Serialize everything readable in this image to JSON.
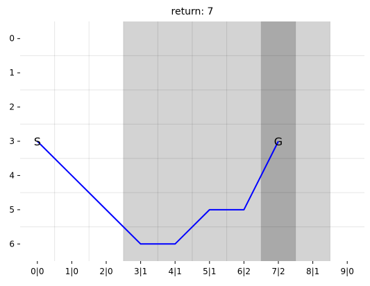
{
  "chart_data": {
    "type": "line",
    "title": "return: 7",
    "x_tick_labels": [
      "0|0",
      "1|0",
      "2|0",
      "3|1",
      "4|1",
      "5|1",
      "6|2",
      "7|2",
      "8|1",
      "9|0"
    ],
    "y_tick_labels": [
      "0",
      "1",
      "2",
      "3",
      "4",
      "5",
      "6"
    ],
    "xlim": [
      -0.5,
      9.5
    ],
    "ylim": [
      6.5,
      -0.5
    ],
    "y_inverted": true,
    "grid": true,
    "shaded_bands": [
      {
        "from": 2.5,
        "to": 6.5,
        "level": 1,
        "color": "#d3d3d3"
      },
      {
        "from": 6.5,
        "to": 8.5,
        "level": 2,
        "color": "#a9a9a9"
      },
      {
        "from": 7.5,
        "to": 8.5,
        "level": 1,
        "color": "#d3d3d3"
      }
    ],
    "series": [
      {
        "color": "#0000ff",
        "x": [
          0,
          1,
          2,
          3,
          4,
          5,
          6,
          7
        ],
        "y": [
          3,
          4,
          5,
          6,
          6,
          5,
          5,
          3
        ]
      }
    ],
    "annotations": [
      {
        "text": "S",
        "x": 0,
        "y": 3
      },
      {
        "text": "G",
        "x": 7,
        "y": 3
      }
    ]
  }
}
